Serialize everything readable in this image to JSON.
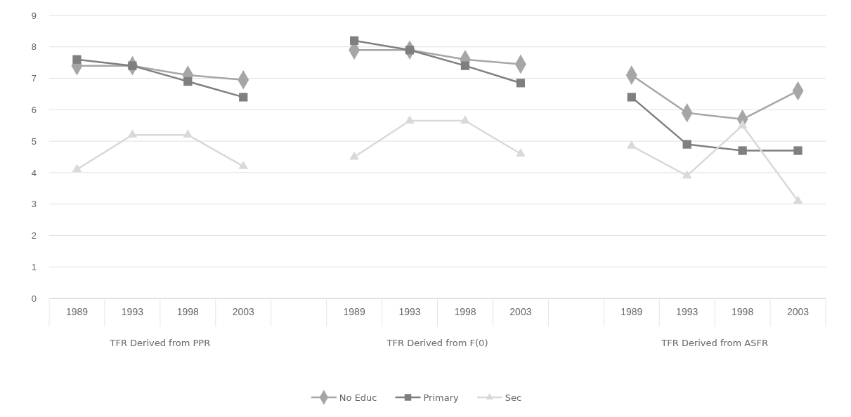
{
  "chart_data": {
    "type": "line",
    "categories": [
      "1989",
      "1993",
      "1998",
      "2003",
      null,
      "1989",
      "1993",
      "1998",
      "2003",
      null,
      "1989",
      "1993",
      "1998",
      "2003"
    ],
    "series": [
      {
        "name": "No Educ",
        "color": "#a6a6a6",
        "marker": "diamond",
        "values": [
          7.4,
          7.4,
          7.1,
          6.95,
          null,
          7.9,
          7.9,
          7.6,
          7.45,
          null,
          7.1,
          5.9,
          5.7,
          6.6
        ]
      },
      {
        "name": "Primary",
        "color": "#7f7f7f",
        "marker": "square",
        "values": [
          7.6,
          7.4,
          6.9,
          6.4,
          null,
          8.2,
          7.9,
          7.4,
          6.85,
          null,
          6.4,
          4.9,
          4.7,
          4.7
        ]
      },
      {
        "name": "Sec",
        "color": "#d9d9d9",
        "marker": "triangle",
        "values": [
          4.1,
          5.2,
          5.2,
          4.2,
          null,
          4.5,
          5.65,
          5.65,
          4.6,
          null,
          4.85,
          3.9,
          5.5,
          3.1
        ]
      }
    ],
    "annotations": [
      "TFR Derived from PPR",
      "TFR Derived from F(0)",
      "TFR Derived from ASFR"
    ],
    "ylim": [
      0,
      9
    ],
    "yticks": [
      0,
      1,
      2,
      3,
      4,
      5,
      6,
      7,
      8,
      9
    ],
    "grid": "y",
    "legend": "bottom",
    "line_style": "solid"
  }
}
